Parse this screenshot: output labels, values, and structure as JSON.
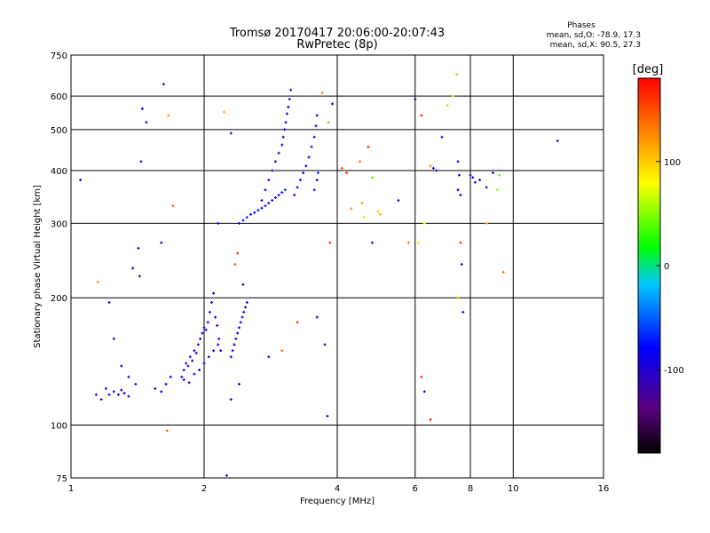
{
  "chart_data": {
    "type": "scatter",
    "title": "Tromsø 20170417 20:06:00-20:07:43",
    "subtitle": "RwPretec (8p)",
    "xlabel": "Frequency [MHz]",
    "ylabel": "Stationary phase Virtual Height [km]",
    "x_scale": "log",
    "y_scale": "log",
    "xlim": [
      1,
      16
    ],
    "ylim": [
      75,
      750
    ],
    "x_ticks": [
      1,
      2,
      4,
      6,
      8,
      10,
      16
    ],
    "y_ticks": [
      75,
      100,
      200,
      300,
      400,
      500,
      600,
      750
    ],
    "grid": true,
    "phases_box": {
      "title": "Phases",
      "line_o": "mean, sd,O: -78.9, 17.3",
      "line_x": "mean, sd,X:  90.5, 27.3"
    },
    "colorbar": {
      "label": "[deg]",
      "range": [
        -180,
        180
      ],
      "ticks": [
        100,
        0,
        -100
      ],
      "colors": [
        "#000000",
        "#5a0080",
        "#0000ff",
        "#00c8ff",
        "#00ff00",
        "#ffff00",
        "#ff8000",
        "#ff0000"
      ]
    },
    "series_points": [
      [
        1.05,
        380,
        -90
      ],
      [
        1.14,
        118,
        -95
      ],
      [
        1.17,
        115,
        -100
      ],
      [
        1.2,
        122,
        -100
      ],
      [
        1.22,
        118,
        -95
      ],
      [
        1.25,
        120,
        -90
      ],
      [
        1.28,
        118,
        -100
      ],
      [
        1.3,
        121,
        -95
      ],
      [
        1.32,
        119,
        -90
      ],
      [
        1.35,
        117,
        -95
      ],
      [
        1.15,
        218,
        120
      ],
      [
        1.22,
        195,
        -80
      ],
      [
        1.25,
        160,
        -90
      ],
      [
        1.3,
        138,
        -95
      ],
      [
        1.35,
        130,
        -100
      ],
      [
        1.4,
        125,
        -90
      ],
      [
        1.38,
        235,
        -100
      ],
      [
        1.42,
        262,
        -95
      ],
      [
        1.43,
        225,
        -110
      ],
      [
        1.44,
        420,
        -90
      ],
      [
        1.48,
        520,
        -95
      ],
      [
        1.45,
        560,
        -80
      ],
      [
        1.62,
        640,
        -95
      ],
      [
        1.66,
        540,
        120
      ],
      [
        1.6,
        270,
        -90
      ],
      [
        1.65,
        97,
        140
      ],
      [
        1.7,
        330,
        140
      ],
      [
        1.55,
        122,
        -100
      ],
      [
        1.6,
        120,
        -95
      ],
      [
        1.64,
        125,
        -90
      ],
      [
        1.68,
        130,
        -85
      ],
      [
        1.8,
        135,
        -90
      ],
      [
        1.82,
        140,
        -85
      ],
      [
        1.84,
        138,
        -100
      ],
      [
        1.86,
        145,
        -95
      ],
      [
        1.88,
        142,
        -90
      ],
      [
        1.9,
        150,
        -100
      ],
      [
        1.92,
        148,
        -95
      ],
      [
        1.94,
        155,
        -90
      ],
      [
        1.96,
        160,
        -85
      ],
      [
        1.98,
        165,
        -95
      ],
      [
        2.0,
        170,
        -100
      ],
      [
        2.02,
        168,
        -90
      ],
      [
        2.04,
        175,
        -95
      ],
      [
        2.06,
        185,
        -80
      ],
      [
        2.08,
        195,
        -90
      ],
      [
        2.1,
        205,
        -95
      ],
      [
        2.12,
        180,
        -85
      ],
      [
        2.14,
        172,
        -100
      ],
      [
        2.16,
        160,
        -90
      ],
      [
        2.18,
        150,
        -95
      ],
      [
        1.78,
        130,
        -90
      ],
      [
        1.8,
        128,
        -95
      ],
      [
        1.85,
        126,
        -100
      ],
      [
        1.9,
        132,
        -85
      ],
      [
        1.95,
        135,
        -90
      ],
      [
        2.0,
        140,
        -95
      ],
      [
        2.05,
        145,
        -100
      ],
      [
        2.1,
        150,
        -90
      ],
      [
        2.15,
        155,
        -85
      ],
      [
        2.3,
        145,
        -90
      ],
      [
        2.32,
        150,
        -85
      ],
      [
        2.34,
        155,
        -80
      ],
      [
        2.36,
        160,
        -95
      ],
      [
        2.38,
        165,
        -90
      ],
      [
        2.4,
        170,
        -85
      ],
      [
        2.42,
        175,
        -100
      ],
      [
        2.44,
        180,
        -90
      ],
      [
        2.46,
        185,
        -80
      ],
      [
        2.48,
        190,
        -85
      ],
      [
        2.5,
        195,
        -90
      ],
      [
        2.35,
        240,
        150
      ],
      [
        2.38,
        255,
        160
      ],
      [
        2.45,
        215,
        -90
      ],
      [
        2.4,
        125,
        -100
      ],
      [
        2.3,
        115,
        -95
      ],
      [
        2.25,
        76,
        -90
      ],
      [
        2.4,
        300,
        -80
      ],
      [
        2.45,
        305,
        -75
      ],
      [
        2.5,
        310,
        -70
      ],
      [
        2.55,
        315,
        -80
      ],
      [
        2.6,
        318,
        -85
      ],
      [
        2.65,
        322,
        -75
      ],
      [
        2.7,
        326,
        -80
      ],
      [
        2.75,
        330,
        -70
      ],
      [
        2.8,
        335,
        -75
      ],
      [
        2.85,
        340,
        -80
      ],
      [
        2.9,
        345,
        -85
      ],
      [
        2.95,
        350,
        -75
      ],
      [
        3.0,
        355,
        -80
      ],
      [
        3.05,
        360,
        -70
      ],
      [
        2.7,
        340,
        -90
      ],
      [
        2.75,
        360,
        -95
      ],
      [
        2.8,
        380,
        -100
      ],
      [
        2.85,
        400,
        -90
      ],
      [
        2.9,
        420,
        -95
      ],
      [
        2.95,
        440,
        -100
      ],
      [
        3.0,
        460,
        -90
      ],
      [
        3.02,
        480,
        -95
      ],
      [
        3.04,
        500,
        -100
      ],
      [
        3.06,
        520,
        -90
      ],
      [
        3.08,
        545,
        -95
      ],
      [
        3.1,
        565,
        -85
      ],
      [
        3.12,
        590,
        -90
      ],
      [
        3.14,
        620,
        -80
      ],
      [
        3.2,
        350,
        -85
      ],
      [
        3.25,
        365,
        -80
      ],
      [
        3.3,
        380,
        -90
      ],
      [
        3.35,
        395,
        -85
      ],
      [
        3.4,
        410,
        -75
      ],
      [
        3.45,
        430,
        -80
      ],
      [
        3.5,
        455,
        -70
      ],
      [
        3.55,
        480,
        -75
      ],
      [
        3.58,
        510,
        -80
      ],
      [
        3.6,
        540,
        -85
      ],
      [
        3.55,
        360,
        -70
      ],
      [
        3.6,
        380,
        -75
      ],
      [
        3.62,
        395,
        -65
      ],
      [
        2.3,
        490,
        -100
      ],
      [
        2.22,
        550,
        110
      ],
      [
        2.15,
        300,
        -90
      ],
      [
        3.7,
        610,
        130
      ],
      [
        3.82,
        520,
        120
      ],
      [
        3.9,
        575,
        -100
      ],
      [
        3.85,
        270,
        160
      ],
      [
        3.8,
        105,
        -90
      ],
      [
        3.75,
        155,
        -110
      ],
      [
        3.6,
        180,
        -90
      ],
      [
        3.25,
        175,
        165
      ],
      [
        3.0,
        150,
        140
      ],
      [
        2.8,
        145,
        -100
      ],
      [
        4.1,
        405,
        150
      ],
      [
        4.2,
        395,
        160
      ],
      [
        4.3,
        325,
        120
      ],
      [
        4.5,
        420,
        130
      ],
      [
        4.55,
        335,
        110
      ],
      [
        4.6,
        310,
        60
      ],
      [
        4.7,
        455,
        170
      ],
      [
        4.8,
        385,
        40
      ],
      [
        4.8,
        270,
        -100
      ],
      [
        4.95,
        320,
        100
      ],
      [
        5.0,
        315,
        110
      ],
      [
        5.5,
        340,
        -100
      ],
      [
        5.8,
        270,
        130
      ],
      [
        6.0,
        590,
        -100
      ],
      [
        6.2,
        540,
        170
      ],
      [
        6.3,
        300,
        80
      ],
      [
        6.5,
        410,
        120
      ],
      [
        6.6,
        405,
        -95
      ],
      [
        6.7,
        400,
        -100
      ],
      [
        6.9,
        480,
        -100
      ],
      [
        7.1,
        570,
        100
      ],
      [
        7.3,
        600,
        90
      ],
      [
        7.45,
        675,
        110
      ],
      [
        7.5,
        420,
        -90
      ],
      [
        7.55,
        390,
        -100
      ],
      [
        7.6,
        270,
        160
      ],
      [
        7.65,
        240,
        -100
      ],
      [
        7.7,
        185,
        -95
      ],
      [
        7.5,
        200,
        110
      ],
      [
        7.5,
        360,
        -90
      ],
      [
        7.6,
        350,
        -80
      ],
      [
        8.0,
        390,
        -100
      ],
      [
        8.1,
        385,
        -95
      ],
      [
        8.2,
        375,
        -100
      ],
      [
        8.4,
        380,
        -90
      ],
      [
        8.7,
        365,
        -100
      ],
      [
        9.0,
        395,
        -95
      ],
      [
        9.3,
        390,
        40
      ],
      [
        9.5,
        230,
        140
      ],
      [
        9.2,
        360,
        50
      ],
      [
        8.7,
        300,
        110
      ],
      [
        6.2,
        130,
        165
      ],
      [
        6.3,
        120,
        -100
      ],
      [
        6.5,
        103,
        170
      ],
      [
        6.1,
        270,
        90
      ],
      [
        12.6,
        470,
        -100
      ]
    ]
  }
}
